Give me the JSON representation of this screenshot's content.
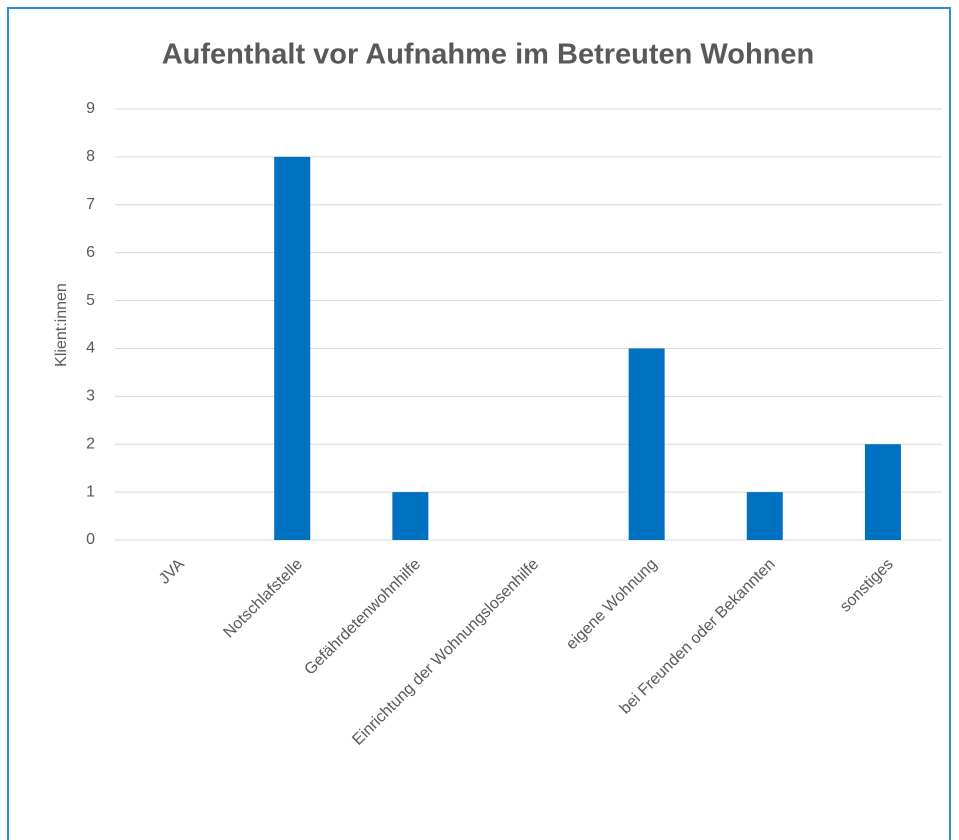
{
  "chart_data": {
    "type": "bar",
    "title": "Aufenthalt vor Aufnahme im Betreuten Wohnen",
    "y_label": "Klient:innen",
    "categories": [
      "JVA",
      "Notschlafstelle",
      "Gefährdetenwohnhilfe",
      "Einrichtung der Wohnungslosenhilfe",
      "eigene Wohnung",
      "bei Freunden oder Bekannten",
      "sonstiges"
    ],
    "values": [
      0,
      8,
      1,
      0,
      4,
      1,
      2
    ],
    "color": "#0070c0",
    "ylim": [
      0,
      9
    ],
    "yticks": [
      0,
      1,
      2,
      3,
      4,
      5,
      6,
      7,
      8,
      9
    ],
    "grid": true
  }
}
